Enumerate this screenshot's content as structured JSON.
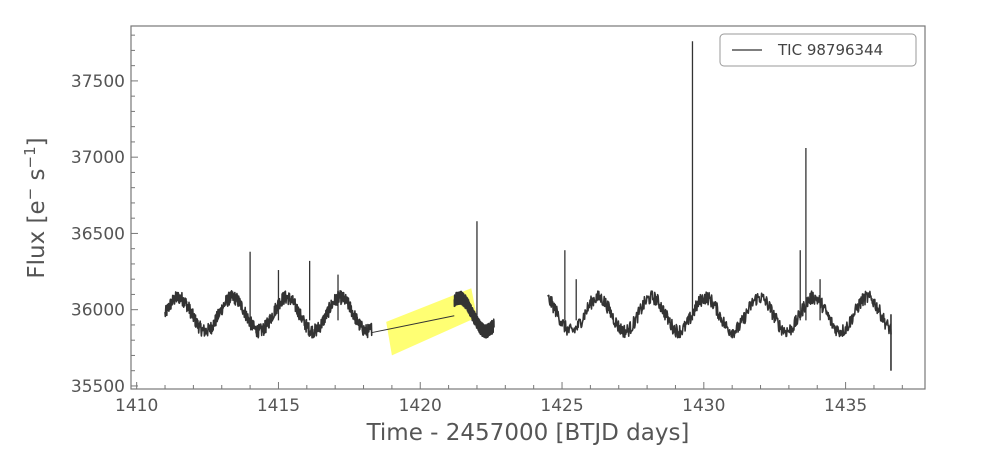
{
  "chart_data": {
    "type": "line",
    "title": "",
    "xlabel": "Time - 2457000 [BTJD days]",
    "ylabel_main": "Flux [e",
    "ylabel_sup1": "−",
    "ylabel_mid": " s",
    "ylabel_sup2": "−1",
    "ylabel_end": "]",
    "xlim": [
      1409.8,
      1437.8
    ],
    "ylim": [
      35480,
      37860
    ],
    "xticks": [
      1410,
      1415,
      1420,
      1425,
      1430,
      1435
    ],
    "yticks": [
      35500,
      36000,
      36500,
      37000,
      37500
    ],
    "xtick_labels": [
      "1410",
      "1415",
      "1420",
      "1425",
      "1430",
      "1435"
    ],
    "ytick_labels": [
      "35500",
      "36000",
      "36500",
      "37000",
      "37500"
    ],
    "legend_position": "top-right",
    "grid": false,
    "series": [
      {
        "name": "TIC 98796344",
        "color": "#333333",
        "segments": [
          {
            "x_start": 1411.0,
            "x_end": 1418.3
          },
          {
            "x_start": 1421.2,
            "x_end": 1422.6
          },
          {
            "x_start": 1424.5,
            "x_end": 1436.6
          }
        ],
        "baseline": 35970,
        "amplitude": 110,
        "period_days": 1.9,
        "noise": 45,
        "flares": [
          {
            "x": 1414.0,
            "y": 36380
          },
          {
            "x": 1415.0,
            "y": 36260
          },
          {
            "x": 1416.1,
            "y": 36320
          },
          {
            "x": 1417.1,
            "y": 36230
          },
          {
            "x": 1422.0,
            "y": 36580
          },
          {
            "x": 1425.1,
            "y": 36390
          },
          {
            "x": 1425.5,
            "y": 36200
          },
          {
            "x": 1429.6,
            "y": 37760
          },
          {
            "x": 1433.4,
            "y": 36390
          },
          {
            "x": 1433.6,
            "y": 37060
          },
          {
            "x": 1434.1,
            "y": 36200
          }
        ],
        "end_drop": {
          "x": 1436.6,
          "y": 35600
        },
        "gap_line": [
          {
            "x": 1418.3,
            "y": 35850
          },
          {
            "x": 1421.2,
            "y": 35960
          }
        ]
      }
    ],
    "annotations": [
      {
        "type": "highlight-band",
        "color": "#ffff44",
        "points": [
          [
            1418.8,
            35920
          ],
          [
            1421.8,
            36140
          ],
          [
            1422.0,
            35950
          ],
          [
            1419.0,
            35700
          ]
        ]
      }
    ]
  }
}
